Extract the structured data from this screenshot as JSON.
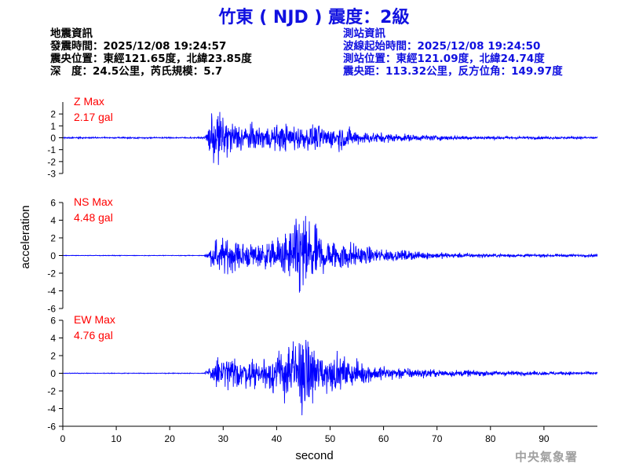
{
  "title": "竹東 ( NJD ) 震度：2級",
  "quake_info": {
    "heading": "地震資訊",
    "origin_time": "發震時間：2025/12/08 19:24:57",
    "epicenter": "震央位置：東經121.65度，北緯23.85度",
    "depth_magnitude": "深　度：24.5公里，芮氏規模：5.7"
  },
  "station_info": {
    "heading": "測站資訊",
    "wave_start": "波線起始時間：2025/12/08 19:24:50",
    "location": "測站位置：東經121.09度，北緯24.74度",
    "distance": "震央距：113.32公里，反方位角：149.97度"
  },
  "agency": "中央氣象署",
  "chart_data": [
    {
      "type": "line",
      "component": "Z",
      "label": "Z Max",
      "max_value": "2.17 gal",
      "peak": 2.17,
      "ylim": [
        -3,
        3
      ],
      "yticks": [
        -3,
        -2,
        -1,
        0,
        1,
        2
      ],
      "envelope": [
        [
          0,
          0.05
        ],
        [
          26.5,
          0.05
        ],
        [
          27.5,
          1.2
        ],
        [
          28.5,
          2.0
        ],
        [
          29.5,
          1.9
        ],
        [
          31,
          1.3
        ],
        [
          34,
          1.0
        ],
        [
          37,
          0.8
        ],
        [
          40,
          0.9
        ],
        [
          43,
          1.0
        ],
        [
          45,
          0.8
        ],
        [
          48,
          0.9
        ],
        [
          50,
          0.7
        ],
        [
          52,
          0.9
        ],
        [
          55,
          0.5
        ],
        [
          58,
          0.4
        ],
        [
          62,
          0.3
        ],
        [
          66,
          0.22
        ],
        [
          70,
          0.18
        ],
        [
          75,
          0.14
        ],
        [
          80,
          0.12
        ],
        [
          85,
          0.1
        ],
        [
          90,
          0.09
        ],
        [
          95,
          0.08
        ],
        [
          100,
          0.08
        ]
      ]
    },
    {
      "type": "line",
      "component": "NS",
      "label": "NS Max",
      "max_value": "4.48 gal",
      "peak": 4.48,
      "ylim": [
        -6,
        6
      ],
      "yticks": [
        -6,
        -4,
        -2,
        0,
        2,
        4,
        6
      ],
      "envelope": [
        [
          0,
          0.03
        ],
        [
          26.5,
          0.03
        ],
        [
          27.5,
          0.6
        ],
        [
          29,
          1.9
        ],
        [
          31,
          1.5
        ],
        [
          34,
          1.3
        ],
        [
          37,
          1.1
        ],
        [
          40,
          1.6
        ],
        [
          43,
          2.7
        ],
        [
          45,
          4.4
        ],
        [
          47,
          2.8
        ],
        [
          49,
          1.8
        ],
        [
          51,
          1.4
        ],
        [
          53,
          1.5
        ],
        [
          55,
          1.0
        ],
        [
          58,
          0.7
        ],
        [
          62,
          0.55
        ],
        [
          66,
          0.4
        ],
        [
          70,
          0.3
        ],
        [
          75,
          0.22
        ],
        [
          80,
          0.18
        ],
        [
          85,
          0.14
        ],
        [
          90,
          0.13
        ],
        [
          95,
          0.13
        ],
        [
          100,
          0.12
        ]
      ]
    },
    {
      "type": "line",
      "component": "EW",
      "label": "EW Max",
      "max_value": "4.76 gal",
      "peak": 4.76,
      "ylim": [
        -6,
        6
      ],
      "yticks": [
        -6,
        -4,
        -2,
        0,
        2,
        4,
        6
      ],
      "envelope": [
        [
          0,
          0.03
        ],
        [
          26.5,
          0.03
        ],
        [
          27.5,
          0.7
        ],
        [
          29,
          1.6
        ],
        [
          31,
          1.5
        ],
        [
          34,
          1.3
        ],
        [
          37,
          1.4
        ],
        [
          40,
          1.9
        ],
        [
          43,
          3.0
        ],
        [
          44.5,
          4.7
        ],
        [
          46,
          3.1
        ],
        [
          48,
          2.2
        ],
        [
          50,
          1.7
        ],
        [
          52,
          1.5
        ],
        [
          55,
          1.1
        ],
        [
          58,
          0.8
        ],
        [
          62,
          0.6
        ],
        [
          66,
          0.45
        ],
        [
          70,
          0.35
        ],
        [
          75,
          0.3
        ],
        [
          80,
          0.25
        ],
        [
          85,
          0.2
        ],
        [
          90,
          0.17
        ],
        [
          95,
          0.15
        ],
        [
          100,
          0.14
        ]
      ]
    }
  ],
  "axes": {
    "xlabel": "second",
    "ylabel": "acceleration",
    "xlim": [
      0,
      100
    ],
    "xticks": [
      0,
      10,
      20,
      30,
      40,
      50,
      60,
      70,
      80,
      90
    ]
  },
  "colors": {
    "trace": "#0000ff",
    "max_label": "#ff0000",
    "title": "#1010e0",
    "station_text": "#1010e0"
  }
}
